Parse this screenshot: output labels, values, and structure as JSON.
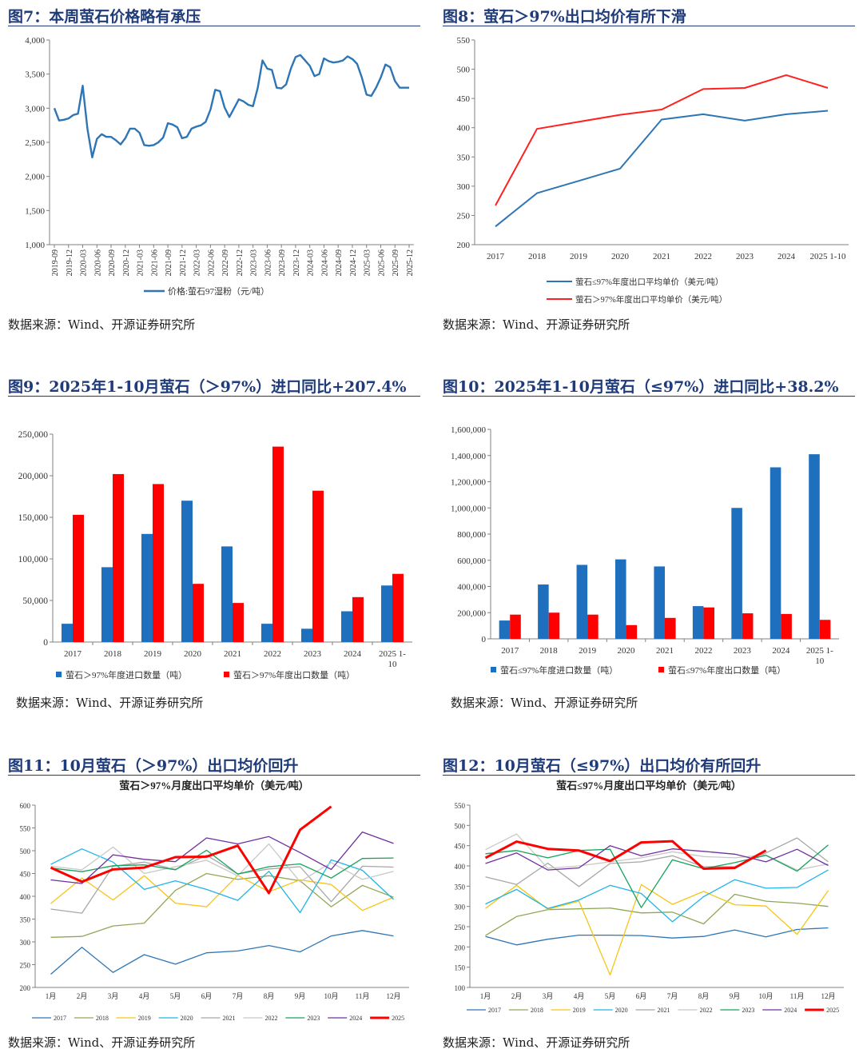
{
  "panels": [
    {
      "title": "图7：本周萤石价格略有承压",
      "source": "数据来源：Wind、开源证券研究所",
      "chart_data": {
        "type": "line",
        "title": "",
        "y_ticks": [
          "1,000",
          "1,500",
          "2,000",
          "2,500",
          "3,000",
          "3,500",
          "4,000"
        ],
        "ylim": [
          1000,
          4000
        ],
        "x_tick_labels": [
          "2019-09",
          "2019-12",
          "2020-03",
          "2020-06",
          "2020-09",
          "2020-12",
          "2021-03",
          "2021-06",
          "2021-09",
          "2021-12",
          "2022-03",
          "2022-06",
          "2022-09",
          "2022-12",
          "2023-03",
          "2023-06",
          "2023-09",
          "2023-12",
          "2024-03",
          "2024-06",
          "2024-09",
          "2024-12",
          "2025-03",
          "2025-06",
          "2025-09",
          "2025-12"
        ],
        "legend_position": "bottom",
        "series": [
          {
            "name": "价格:萤石97湿粉（元/吨）",
            "color": "#2e75b6",
            "x": [
              "2019-09",
              "2019-10",
              "2019-11",
              "2019-12",
              "2020-01",
              "2020-02",
              "2020-03",
              "2020-04",
              "2020-05",
              "2020-06",
              "2020-07",
              "2020-08",
              "2020-09",
              "2020-10",
              "2020-11",
              "2020-12",
              "2021-01",
              "2021-02",
              "2021-03",
              "2021-04",
              "2021-05",
              "2021-06",
              "2021-07",
              "2021-08",
              "2021-09",
              "2021-10",
              "2021-11",
              "2021-12",
              "2022-01",
              "2022-02",
              "2022-03",
              "2022-04",
              "2022-05",
              "2022-06",
              "2022-07",
              "2022-08",
              "2022-09",
              "2022-10",
              "2022-11",
              "2022-12",
              "2023-01",
              "2023-02",
              "2023-03",
              "2023-04",
              "2023-05",
              "2023-06",
              "2023-07",
              "2023-08",
              "2023-09",
              "2023-10",
              "2023-11",
              "2023-12",
              "2024-01",
              "2024-02",
              "2024-03",
              "2024-04",
              "2024-05",
              "2024-06",
              "2024-07",
              "2024-08",
              "2024-09",
              "2024-10",
              "2024-11",
              "2024-12",
              "2025-01",
              "2025-02",
              "2025-03",
              "2025-04",
              "2025-05",
              "2025-06",
              "2025-07",
              "2025-08",
              "2025-09",
              "2025-10",
              "2025-11",
              "2025-12"
            ],
            "values": [
              3000,
              2820,
              2830,
              2850,
              2900,
              2920,
              3330,
              2700,
              2280,
              2550,
              2620,
              2580,
              2580,
              2530,
              2470,
              2560,
              2700,
              2700,
              2640,
              2460,
              2450,
              2460,
              2500,
              2570,
              2780,
              2760,
              2720,
              2560,
              2580,
              2700,
              2730,
              2750,
              2800,
              2980,
              3270,
              3250,
              3010,
              2870,
              3000,
              3130,
              3100,
              3050,
              3030,
              3300,
              3700,
              3580,
              3560,
              3300,
              3290,
              3350,
              3580,
              3750,
              3780,
              3700,
              3620,
              3470,
              3500,
              3730,
              3690,
              3670,
              3680,
              3700,
              3760,
              3720,
              3650,
              3450,
              3200,
              3180,
              3300,
              3450,
              3640,
              3600,
              3400,
              3300,
              3300,
              3300
            ]
          }
        ]
      }
    },
    {
      "title": "图8：萤石＞97%出口均价有所下滑",
      "source": "数据来源：Wind、开源证券研究所",
      "chart_data": {
        "type": "line",
        "title": "",
        "categories": [
          "2017",
          "2018",
          "2019",
          "2020",
          "2021",
          "2022",
          "2023",
          "2024",
          "2025 1-10"
        ],
        "y_ticks": [
          "200",
          "250",
          "300",
          "350",
          "400",
          "450",
          "500",
          "550"
        ],
        "ylim": [
          200,
          550
        ],
        "legend_position": "bottom",
        "series": [
          {
            "name": "萤石≤97%年度出口平均单价（美元/吨）",
            "color": "#2e75b6",
            "values": [
              231,
              288,
              309,
              330,
              414,
              423,
              412,
              423,
              429
            ]
          },
          {
            "name": "萤石＞97%年度出口平均单价（美元/吨）",
            "color": "#ff2020",
            "values": [
              267,
              398,
              410,
              422,
              431,
              466,
              468,
              490,
              468
            ]
          }
        ]
      }
    },
    {
      "title": "图9：2025年1-10月萤石（＞97%）进口同比+207.4%",
      "source": "数据来源：Wind、开源证券研究所",
      "chart_data": {
        "type": "bar",
        "title": "",
        "categories": [
          "2017",
          "2018",
          "2019",
          "2020",
          "2021",
          "2022",
          "2023",
          "2024",
          "2025 1-10"
        ],
        "y_ticks": [
          "0",
          "50,000",
          "100,000",
          "150,000",
          "200,000",
          "250,000"
        ],
        "ylim": [
          0,
          250000
        ],
        "legend_position": "bottom",
        "series": [
          {
            "name": "萤石＞97%年度进口数量（吨）",
            "color": "#1f6fbf",
            "values": [
              22000,
              90000,
              130000,
              170000,
              115000,
              22000,
              16000,
              37000,
              68000
            ]
          },
          {
            "name": "萤石＞97%年度出口数量（吨）",
            "color": "#ff0000",
            "values": [
              153000,
              202000,
              190000,
              70000,
              47000,
              235000,
              182000,
              54000,
              82000
            ]
          }
        ]
      }
    },
    {
      "title": "图10：2025年1-10月萤石（≤97%）进口同比+38.2%",
      "source": "数据来源：Wind、开源证券研究所",
      "chart_data": {
        "type": "bar",
        "title": "",
        "categories": [
          "2017",
          "2018",
          "2019",
          "2020",
          "2021",
          "2022",
          "2023",
          "2024",
          "2025 1-10"
        ],
        "y_ticks": [
          "0",
          "200,000",
          "400,000",
          "600,000",
          "800,000",
          "1,000,000",
          "1,200,000",
          "1,400,000",
          "1,600,000"
        ],
        "ylim": [
          0,
          1600000
        ],
        "legend_position": "bottom",
        "series": [
          {
            "name": "萤石≤97%年度进口数量（吨）",
            "color": "#1f6fbf",
            "values": [
              140000,
              415000,
              565000,
              607000,
              553000,
              250000,
              1000000,
              1310000,
              1410000
            ]
          },
          {
            "name": "萤石≤97%年度出口数量（吨）",
            "color": "#ff0000",
            "values": [
              185000,
              200000,
              185000,
              105000,
              160000,
              240000,
              195000,
              190000,
              145000
            ]
          }
        ]
      }
    },
    {
      "title": "图11：10月萤石（＞97%）出口均价回升",
      "source": "数据来源：Wind、开源证券研究所",
      "chart_data": {
        "type": "line",
        "title": "萤石＞97%月度出口平均单价（美元/吨）",
        "categories": [
          "1月",
          "2月",
          "3月",
          "4月",
          "5月",
          "6月",
          "7月",
          "8月",
          "9月",
          "10月",
          "11月",
          "12月"
        ],
        "y_ticks": [
          "200",
          "250",
          "300",
          "350",
          "400",
          "450",
          "500",
          "550",
          "600"
        ],
        "ylim": [
          200,
          600
        ],
        "legend_position": "bottom",
        "series": [
          {
            "name": "2017",
            "color": "#2e75b6",
            "width": 1.3,
            "values": [
              229,
              288,
              233,
              272,
              251,
              276,
              280,
              292,
              278,
              313,
              325,
              313
            ]
          },
          {
            "name": "2018",
            "color": "#8fa855",
            "width": 1.3,
            "values": [
              310,
              312,
              335,
              341,
              413,
              450,
              437,
              445,
              434,
              377,
              424,
              398
            ]
          },
          {
            "name": "2019",
            "color": "#f5c518",
            "width": 1.3,
            "values": [
              384,
              440,
              392,
              445,
              385,
              377,
              446,
              410,
              436,
              426,
              369,
              398
            ]
          },
          {
            "name": "2020",
            "color": "#21b4e8",
            "width": 1.3,
            "values": [
              470,
              504,
              475,
              415,
              434,
              415,
              391,
              455,
              364,
              480,
              457,
              393
            ]
          },
          {
            "name": "2021",
            "color": "#a8a8a8",
            "width": 1.3,
            "values": [
              372,
              363,
              466,
              475,
              459,
              490,
              449,
              460,
              465,
              388,
              466,
              464
            ]
          },
          {
            "name": "2022",
            "color": "#c8c8c8",
            "width": 1.3,
            "values": [
              466,
              458,
              508,
              450,
              465,
              479,
              445,
              515,
              432,
              474,
              437,
              455
            ]
          },
          {
            "name": "2023",
            "color": "#16a35a",
            "width": 1.3,
            "values": [
              462,
              454,
              467,
              469,
              458,
              501,
              449,
              465,
              471,
              440,
              483,
              484
            ]
          },
          {
            "name": "2024",
            "color": "#7030a0",
            "width": 1.3,
            "values": [
              436,
              428,
              491,
              481,
              476,
              528,
              515,
              531,
              496,
              459,
              541,
              516
            ]
          },
          {
            "name": "2025",
            "color": "#ff0000",
            "width": 3,
            "values": [
              463,
              432,
              459,
              463,
              486,
              487,
              511,
              407,
              546,
              597,
              null,
              null
            ]
          }
        ]
      }
    },
    {
      "title": "图12：10月萤石（≤97%）出口均价有所回升",
      "source": "数据来源：Wind、开源证券研究所",
      "chart_data": {
        "type": "line",
        "title": "萤石≤97%月度出口平均单价（美元/吨）",
        "categories": [
          "1月",
          "2月",
          "3月",
          "4月",
          "5月",
          "6月",
          "7月",
          "8月",
          "9月",
          "10月",
          "11月",
          "12月"
        ],
        "y_ticks": [
          "100",
          "150",
          "200",
          "250",
          "300",
          "350",
          "400",
          "450",
          "500",
          "550"
        ],
        "ylim": [
          100,
          550
        ],
        "legend_position": "bottom",
        "series": [
          {
            "name": "2017",
            "color": "#2e75b6",
            "width": 1.3,
            "values": [
              226,
              205,
              219,
              229,
              229,
              228,
              222,
              226,
              242,
              225,
              243,
              247
            ]
          },
          {
            "name": "2018",
            "color": "#8fa855",
            "width": 1.3,
            "values": [
              228,
              275,
              292,
              294,
              296,
              284,
              286,
              257,
              330,
              313,
              308,
              300
            ]
          },
          {
            "name": "2019",
            "color": "#f5c518",
            "width": 1.3,
            "values": [
              295,
              352,
              293,
              313,
              131,
              354,
              305,
              337,
              304,
              301,
              231,
              339
            ]
          },
          {
            "name": "2020",
            "color": "#21b4e8",
            "width": 1.3,
            "values": [
              306,
              342,
              295,
              316,
              352,
              332,
              262,
              324,
              366,
              345,
              347,
              390
            ]
          },
          {
            "name": "2021",
            "color": "#a8a8a8",
            "width": 1.3,
            "values": [
              373,
              354,
              407,
              349,
              406,
              410,
              425,
              398,
              398,
              432,
              469,
              410
            ]
          },
          {
            "name": "2022",
            "color": "#c8c8c8",
            "width": 1.3,
            "values": [
              440,
              479,
              394,
              400,
              410,
              420,
              435,
              423,
              420,
              427,
              390,
              405
            ]
          },
          {
            "name": "2023",
            "color": "#16a35a",
            "width": 1.3,
            "values": [
              430,
              438,
              420,
              438,
              441,
              297,
              415,
              393,
              408,
              426,
              387,
              452
            ]
          },
          {
            "name": "2024",
            "color": "#7030a0",
            "width": 1.3,
            "values": [
              406,
              432,
              390,
              395,
              450,
              425,
              442,
              436,
              429,
              410,
              441,
              401
            ]
          },
          {
            "name": "2025",
            "color": "#ff0000",
            "width": 3,
            "values": [
              420,
              460,
              442,
              438,
              412,
              458,
              461,
              393,
              395,
              438,
              null,
              null
            ]
          }
        ]
      }
    }
  ]
}
